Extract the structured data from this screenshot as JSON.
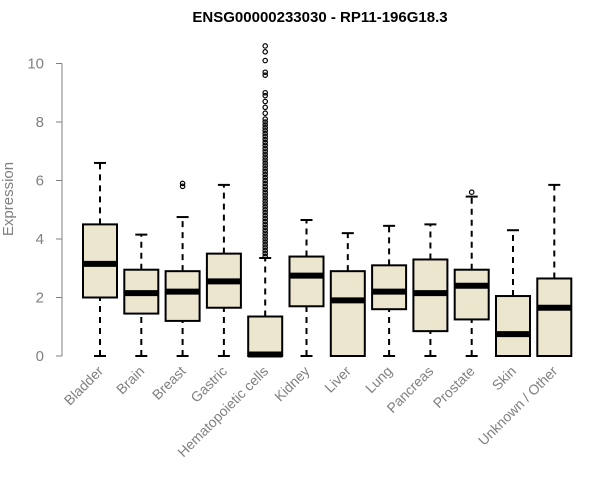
{
  "chart_data": {
    "type": "boxplot",
    "title": "ENSG00000233030 - RP11-196G18.3",
    "xlabel": "",
    "ylabel": "Expression",
    "ylim": [
      0,
      10.8
    ],
    "yticks": [
      0,
      2,
      4,
      6,
      8,
      10
    ],
    "grid": false,
    "colors": {
      "box_fill": "#ede6cf",
      "stroke": "#000000",
      "axis": "#808080",
      "text": "#808080",
      "title": "#000000"
    },
    "categories": [
      "Bladder",
      "Brain",
      "Breast",
      "Gastric",
      "Hematopoietic cells",
      "Kidney",
      "Liver",
      "Lung",
      "Pancreas",
      "Prostate",
      "Skin",
      "Unknown / Other"
    ],
    "boxes": [
      {
        "name": "Bladder",
        "min": 0,
        "q1": 2.0,
        "median": 3.15,
        "q3": 4.5,
        "max": 6.6,
        "outliers": []
      },
      {
        "name": "Brain",
        "min": 0,
        "q1": 1.45,
        "median": 2.15,
        "q3": 2.95,
        "max": 4.15,
        "outliers": []
      },
      {
        "name": "Breast",
        "min": 0,
        "q1": 1.2,
        "median": 2.2,
        "q3": 2.9,
        "max": 4.75,
        "outliers": [
          5.8,
          5.9
        ]
      },
      {
        "name": "Gastric",
        "min": 0,
        "q1": 1.65,
        "median": 2.55,
        "q3": 3.5,
        "max": 5.85,
        "outliers": []
      },
      {
        "name": "Hematopoietic cells",
        "min": 0,
        "q1": 0,
        "median": 0.05,
        "q3": 1.35,
        "max": 3.35,
        "outliers": [
          3.4,
          3.5,
          3.6,
          3.7,
          3.8,
          3.9,
          4.0,
          4.1,
          4.2,
          4.3,
          4.4,
          4.5,
          4.6,
          4.7,
          4.8,
          4.9,
          5.0,
          5.1,
          5.2,
          5.3,
          5.4,
          5.5,
          5.6,
          5.7,
          5.8,
          5.9,
          6.0,
          6.1,
          6.2,
          6.3,
          6.4,
          6.5,
          6.6,
          6.7,
          6.8,
          6.9,
          7.0,
          7.1,
          7.2,
          7.3,
          7.4,
          7.5,
          7.6,
          7.7,
          7.8,
          7.9,
          8.0,
          8.1,
          8.3,
          8.5,
          8.7,
          8.9,
          9.0,
          9.6,
          9.7,
          10.1,
          10.4,
          10.6
        ]
      },
      {
        "name": "Kidney",
        "min": 0,
        "q1": 1.7,
        "median": 2.75,
        "q3": 3.4,
        "max": 4.65,
        "outliers": []
      },
      {
        "name": "Liver",
        "min": 0,
        "q1": 0,
        "median": 1.9,
        "q3": 2.9,
        "max": 4.2,
        "outliers": []
      },
      {
        "name": "Lung",
        "min": 0,
        "q1": 1.6,
        "median": 2.2,
        "q3": 3.1,
        "max": 4.45,
        "outliers": []
      },
      {
        "name": "Pancreas",
        "min": 0,
        "q1": 0.85,
        "median": 2.15,
        "q3": 3.3,
        "max": 4.5,
        "outliers": []
      },
      {
        "name": "Prostate",
        "min": 0,
        "q1": 1.25,
        "median": 2.4,
        "q3": 2.95,
        "max": 5.45,
        "outliers": [
          5.6
        ]
      },
      {
        "name": "Skin",
        "min": 0,
        "q1": 0,
        "median": 0.75,
        "q3": 2.05,
        "max": 4.3,
        "outliers": []
      },
      {
        "name": "Unknown / Other",
        "min": 0,
        "q1": 0,
        "median": 1.65,
        "q3": 2.65,
        "max": 5.85,
        "outliers": []
      }
    ]
  }
}
